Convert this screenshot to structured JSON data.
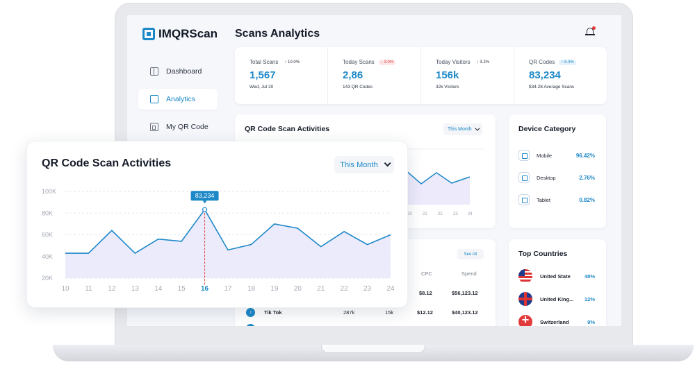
{
  "app": {
    "logo": "IMQRScan",
    "page_title": "Scans Analytics"
  },
  "sidebar": {
    "items": [
      {
        "label": "Dashboard",
        "icon": "dashboard-icon"
      },
      {
        "label": "Analytics",
        "icon": "analytics-icon",
        "active": true
      },
      {
        "label": "My QR Code",
        "icon": "qr-code-icon"
      }
    ]
  },
  "stats": [
    {
      "label": "Total Scans",
      "delta": "↑ 10.0%",
      "value": "1,567",
      "sub": "Wed, Jul 20"
    },
    {
      "label": "Today Scans",
      "delta": "↓ 3.0%",
      "value": "2,86",
      "sub": "143 QR Codes"
    },
    {
      "label": "Today Visitors",
      "delta": "↑ 3.2%",
      "value": "156k",
      "sub": "32k Visitors"
    },
    {
      "label": "QR Codes",
      "delta": "↑ 8.3%",
      "value": "83,234",
      "sub": "$34.28 Average Scans"
    }
  ],
  "bg_chart": {
    "title": "QR Code Scan Activities",
    "period": "This Month",
    "tick_labels": [
      "20",
      "21",
      "22",
      "23",
      "24"
    ]
  },
  "device": {
    "title": "Device Category",
    "items": [
      {
        "label": "Mobile",
        "pct": "96.42%"
      },
      {
        "label": "Desktop",
        "pct": "2.76%"
      },
      {
        "label": "Tablet",
        "pct": "0.82%"
      }
    ]
  },
  "table": {
    "see_all": "See All",
    "headers": {
      "cpc": "CPC",
      "spend": "Spend"
    },
    "rows": [
      {
        "name": "",
        "clicks": "",
        "conv": "",
        "cpc": "$8.12",
        "spend": "$56,123.12"
      },
      {
        "name": "Tik Tok",
        "clicks": "287k",
        "conv": "15k",
        "cpc": "$12.12",
        "spend": "$40,123.12"
      }
    ]
  },
  "countries": {
    "title": "Top Countries",
    "items": [
      {
        "name": "United State",
        "pct": "48%"
      },
      {
        "name": "United King...",
        "pct": "12%"
      },
      {
        "name": "Switzerland",
        "pct": "9%"
      }
    ]
  },
  "popup": {
    "title": "QR Code Scan Activities",
    "period": "This Month"
  },
  "chart_data": {
    "type": "area",
    "title": "QR Code Scan Activities",
    "x": [
      "10",
      "11",
      "12",
      "13",
      "14",
      "15",
      "16",
      "17",
      "18",
      "19",
      "20",
      "21",
      "22",
      "23",
      "24"
    ],
    "values": [
      43000,
      43000,
      64000,
      43000,
      56000,
      54000,
      83234,
      46000,
      51000,
      70000,
      66000,
      49000,
      63000,
      51000,
      60000
    ],
    "y_ticks": [
      "100K",
      "80K",
      "60K",
      "40K",
      "20K"
    ],
    "ylim": [
      20000,
      100000
    ],
    "highlight_index": 6,
    "highlight_label": "83,234",
    "grid": true,
    "colors": {
      "line": "#1c88c7",
      "fill": "#e7e6fb",
      "marker": "#e23b3b"
    }
  }
}
